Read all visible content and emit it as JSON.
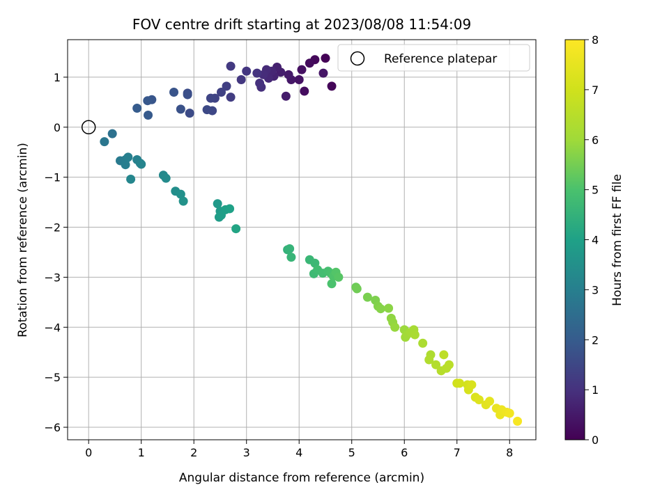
{
  "chart_data": {
    "type": "scatter",
    "title": "FOV centre drift starting at 2023/08/08 11:54:09",
    "xlabel": "Angular distance from reference (arcmin)",
    "ylabel": "Rotation from reference (arcmin)",
    "xlim": [
      -0.4,
      8.5
    ],
    "ylim": [
      -6.25,
      1.75
    ],
    "xticks": [
      0,
      1,
      2,
      3,
      4,
      5,
      6,
      7,
      8
    ],
    "yticks": [
      -6,
      -5,
      -4,
      -3,
      -2,
      -1,
      0,
      1
    ],
    "grid": true,
    "legend": {
      "placement": "top-right",
      "entries": [
        "Reference platepar"
      ]
    },
    "colorbar": {
      "label": "Hours from first FF file",
      "range": [
        0,
        8
      ],
      "ticks": [
        0,
        1,
        2,
        3,
        4,
        5,
        6,
        7,
        8
      ],
      "colormap": "viridis"
    },
    "reference_point": {
      "x": 0,
      "y": 0
    },
    "points": [
      [
        4.5,
        1.38,
        0.05
      ],
      [
        4.62,
        0.82,
        0.1
      ],
      [
        4.3,
        1.35,
        0.15
      ],
      [
        4.2,
        1.28,
        0.2
      ],
      [
        4.1,
        0.72,
        0.25
      ],
      [
        4.05,
        1.15,
        0.3
      ],
      [
        4.0,
        0.95,
        0.35
      ],
      [
        4.46,
        1.08,
        0.4
      ],
      [
        3.85,
        0.95,
        0.45
      ],
      [
        3.8,
        1.05,
        0.5
      ],
      [
        3.75,
        0.62,
        0.55
      ],
      [
        3.65,
        1.1,
        0.6
      ],
      [
        3.58,
        1.2,
        0.65
      ],
      [
        3.52,
        1.02,
        0.7
      ],
      [
        3.48,
        1.12,
        0.75
      ],
      [
        3.42,
        0.98,
        0.8
      ],
      [
        3.38,
        1.15,
        0.85
      ],
      [
        3.32,
        1.05,
        0.9
      ],
      [
        3.28,
        0.8,
        0.95
      ],
      [
        3.25,
        0.88,
        1.0
      ],
      [
        3.2,
        1.08,
        1.05
      ],
      [
        3.0,
        1.12,
        1.1
      ],
      [
        2.9,
        0.95,
        1.15
      ],
      [
        2.7,
        1.22,
        1.2
      ],
      [
        2.7,
        0.6,
        1.25
      ],
      [
        2.62,
        0.82,
        1.3
      ],
      [
        2.52,
        0.7,
        1.35
      ],
      [
        2.4,
        0.58,
        1.4
      ],
      [
        2.32,
        0.58,
        1.45
      ],
      [
        2.35,
        0.33,
        1.5
      ],
      [
        2.25,
        0.35,
        1.55
      ],
      [
        1.92,
        0.28,
        1.6
      ],
      [
        1.88,
        0.68,
        1.65
      ],
      [
        1.88,
        0.65,
        1.7
      ],
      [
        1.75,
        0.36,
        1.75
      ],
      [
        1.62,
        0.7,
        1.8
      ],
      [
        1.2,
        0.55,
        1.85
      ],
      [
        1.12,
        0.53,
        1.9
      ],
      [
        1.13,
        0.24,
        1.95
      ],
      [
        0.92,
        0.38,
        2.0
      ],
      [
        0.45,
        -0.13,
        2.6
      ],
      [
        0.3,
        -0.29,
        2.75
      ],
      [
        0.6,
        -0.67,
        2.85
      ],
      [
        0.7,
        -0.65,
        2.9
      ],
      [
        0.7,
        -0.75,
        2.95
      ],
      [
        0.75,
        -0.6,
        3.0
      ],
      [
        0.92,
        -0.65,
        3.05
      ],
      [
        0.98,
        -0.72,
        3.1
      ],
      [
        1.0,
        -0.74,
        3.15
      ],
      [
        0.8,
        -1.04,
        3.2
      ],
      [
        1.42,
        -0.96,
        3.3
      ],
      [
        1.47,
        -1.02,
        3.35
      ],
      [
        1.65,
        -1.28,
        3.45
      ],
      [
        1.75,
        -1.34,
        3.5
      ],
      [
        1.8,
        -1.48,
        3.55
      ],
      [
        2.45,
        -1.53,
        3.75
      ],
      [
        2.5,
        -1.68,
        3.8
      ],
      [
        2.48,
        -1.8,
        3.85
      ],
      [
        2.52,
        -1.76,
        3.9
      ],
      [
        2.6,
        -1.65,
        3.95
      ],
      [
        2.68,
        -1.63,
        4.0
      ],
      [
        2.8,
        -2.03,
        4.1
      ],
      [
        3.78,
        -2.45,
        4.5
      ],
      [
        3.82,
        -2.43,
        4.55
      ],
      [
        3.85,
        -2.6,
        4.6
      ],
      [
        4.2,
        -2.65,
        4.65
      ],
      [
        4.3,
        -2.72,
        4.7
      ],
      [
        4.28,
        -2.93,
        4.75
      ],
      [
        4.35,
        -2.85,
        4.8
      ],
      [
        4.45,
        -2.92,
        4.85
      ],
      [
        4.55,
        -2.88,
        4.9
      ],
      [
        4.6,
        -2.92,
        4.95
      ],
      [
        4.62,
        -3.13,
        5.0
      ],
      [
        4.65,
        -2.98,
        5.05
      ],
      [
        4.7,
        -2.9,
        5.1
      ],
      [
        4.75,
        -3.0,
        5.15
      ],
      [
        5.08,
        -3.2,
        5.4
      ],
      [
        5.1,
        -3.23,
        5.45
      ],
      [
        5.3,
        -3.4,
        5.55
      ],
      [
        5.45,
        -3.46,
        5.6
      ],
      [
        5.5,
        -3.58,
        5.65
      ],
      [
        5.55,
        -3.63,
        5.7
      ],
      [
        5.7,
        -3.62,
        5.75
      ],
      [
        5.75,
        -3.82,
        5.8
      ],
      [
        5.78,
        -3.9,
        5.85
      ],
      [
        5.82,
        -4.0,
        5.9
      ],
      [
        6.0,
        -4.05,
        5.95
      ],
      [
        6.02,
        -4.2,
        6.0
      ],
      [
        6.05,
        -4.15,
        6.05
      ],
      [
        6.12,
        -4.1,
        6.1
      ],
      [
        6.18,
        -4.05,
        6.15
      ],
      [
        6.2,
        -4.15,
        6.2
      ],
      [
        6.35,
        -4.32,
        6.25
      ],
      [
        6.5,
        -4.55,
        6.3
      ],
      [
        6.47,
        -4.65,
        6.35
      ],
      [
        6.6,
        -4.75,
        6.4
      ],
      [
        6.7,
        -4.87,
        6.45
      ],
      [
        6.8,
        -4.82,
        6.5
      ],
      [
        6.85,
        -4.75,
        6.55
      ],
      [
        6.75,
        -4.55,
        6.6
      ],
      [
        7.0,
        -5.12,
        7.0
      ],
      [
        7.05,
        -5.12,
        7.05
      ],
      [
        7.2,
        -5.15,
        7.1
      ],
      [
        7.22,
        -5.25,
        7.15
      ],
      [
        7.28,
        -5.15,
        7.2
      ],
      [
        7.35,
        -5.4,
        7.25
      ],
      [
        7.42,
        -5.45,
        7.3
      ],
      [
        7.55,
        -5.55,
        7.4
      ],
      [
        7.62,
        -5.48,
        7.45
      ],
      [
        7.75,
        -5.62,
        7.55
      ],
      [
        7.82,
        -5.75,
        7.6
      ],
      [
        7.85,
        -5.65,
        7.65
      ],
      [
        7.95,
        -5.7,
        7.7
      ],
      [
        8.0,
        -5.72,
        7.75
      ],
      [
        8.15,
        -5.88,
        7.85
      ]
    ]
  }
}
